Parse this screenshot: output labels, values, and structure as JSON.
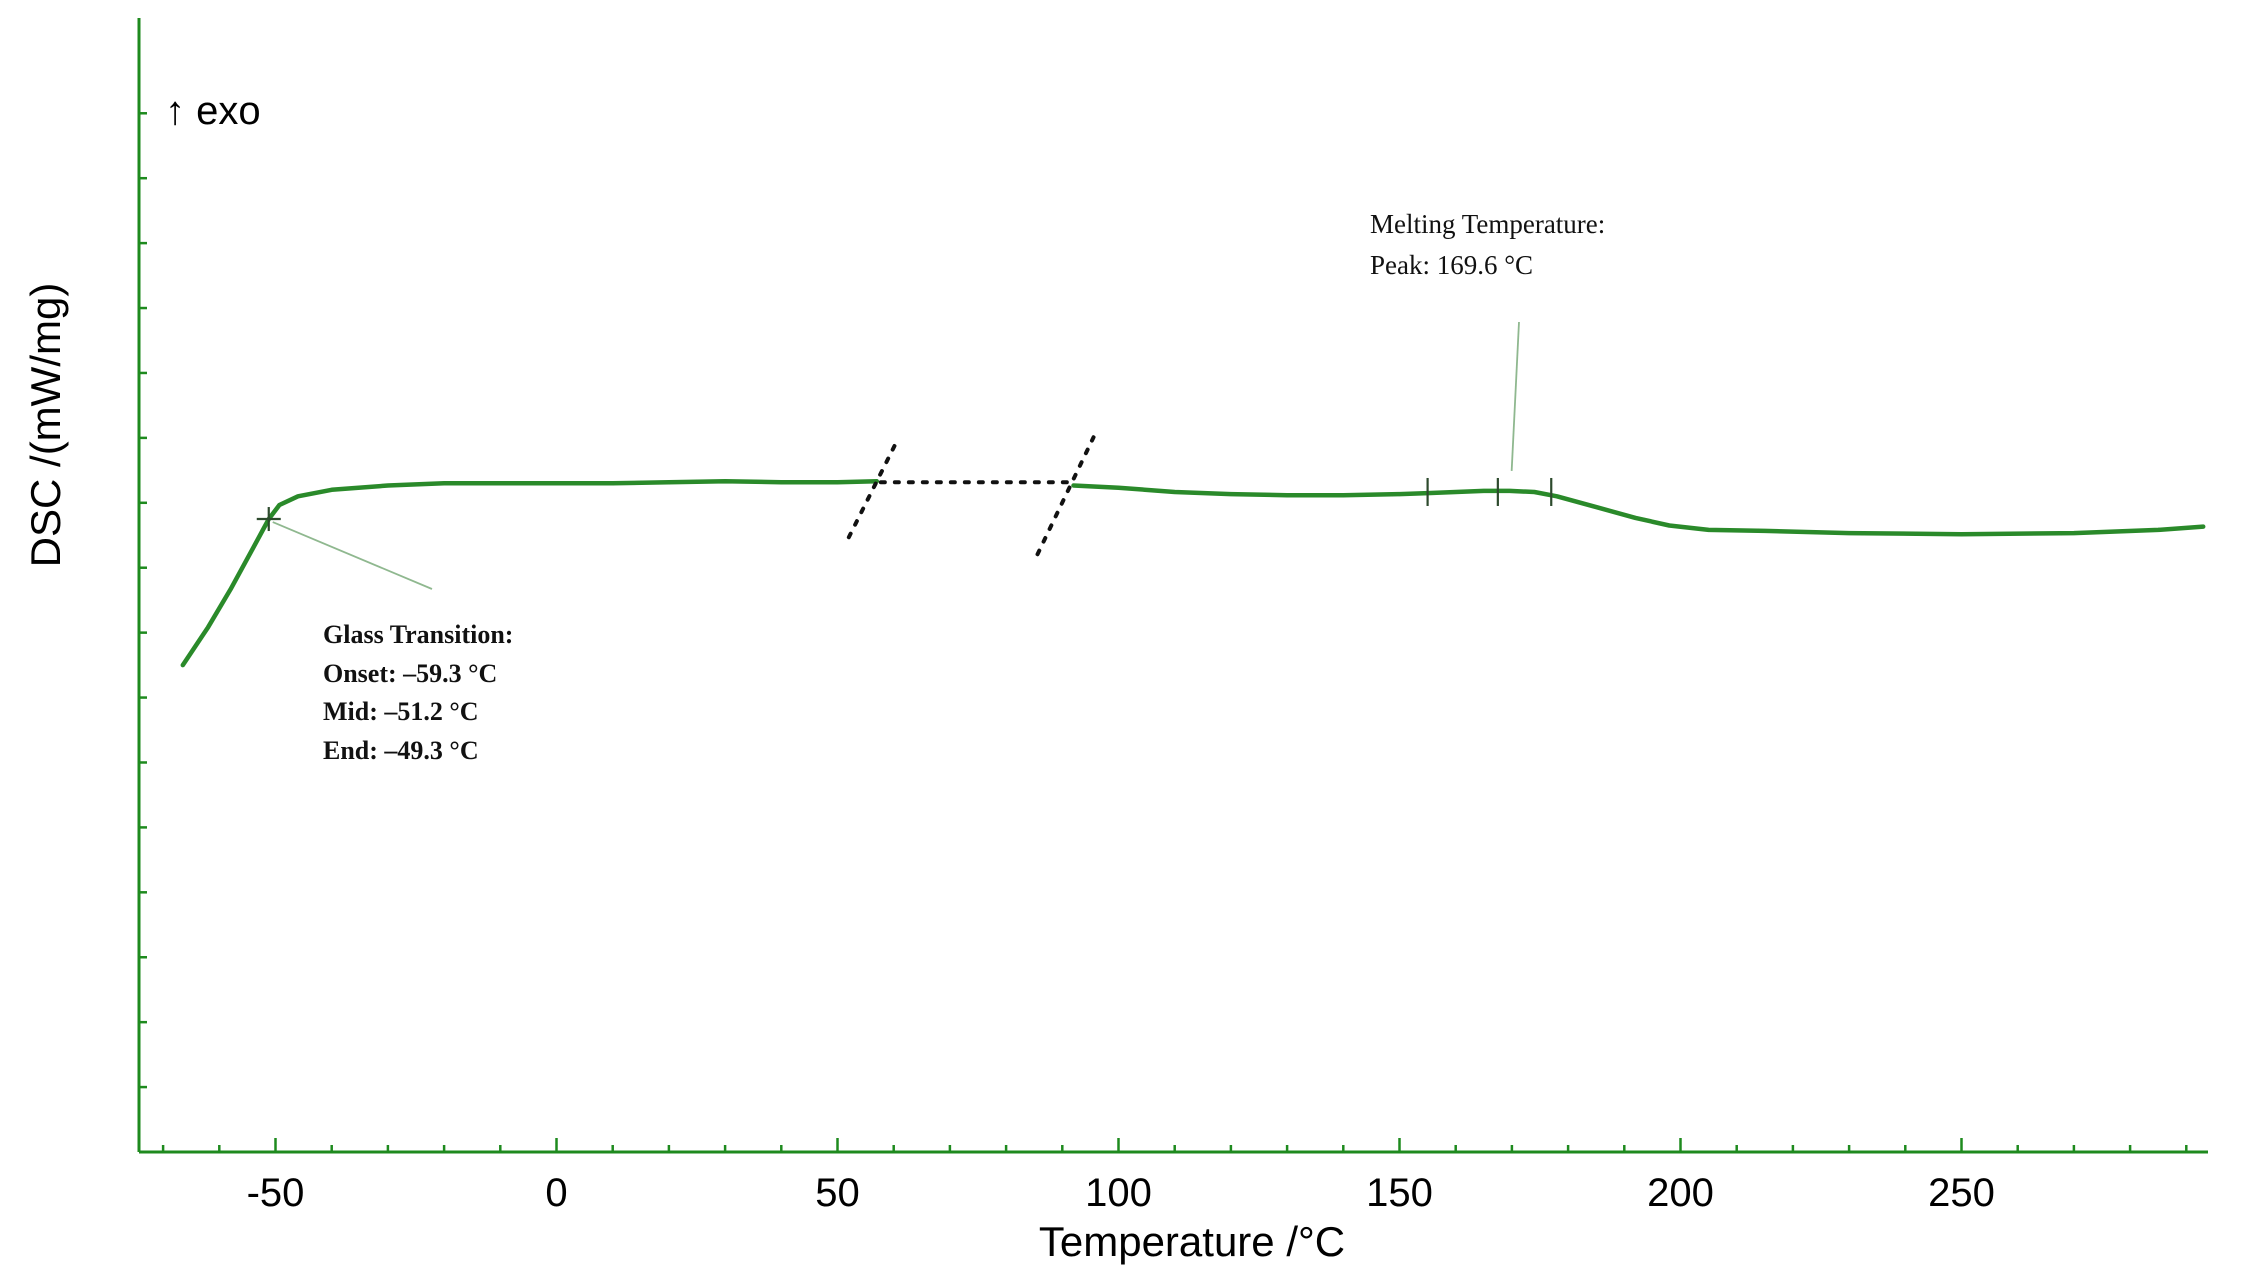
{
  "chart_data": {
    "type": "line",
    "xlabel": "Temperature /°C",
    "ylabel": "DSC /(mW/mg)",
    "exo_label": "↑ exo",
    "xlim": [
      -75,
      295
    ],
    "ylim": [
      0,
      10
    ],
    "x_tick_labels": [
      "-50",
      "0",
      "50",
      "100",
      "150",
      "200",
      "250"
    ],
    "x_ticks": [
      -50,
      0,
      50,
      100,
      150,
      200,
      250
    ],
    "x_minor_step": 10,
    "y_minor_ticks": [
      0.6,
      1.2,
      1.8,
      2.4,
      3.0,
      3.6,
      4.2,
      4.8,
      5.4,
      6.0,
      6.6,
      7.2,
      7.8,
      8.4,
      9.0,
      9.6
    ],
    "series": [
      {
        "color": "#2a8a2a",
        "segments": [
          [
            [
              -66.5,
              4.5
            ],
            [
              -62,
              4.85
            ],
            [
              -58,
              5.2
            ],
            [
              -54,
              5.58
            ],
            [
              -51.2,
              5.85
            ],
            [
              -49.3,
              5.98
            ],
            [
              -46,
              6.06
            ],
            [
              -40,
              6.12
            ],
            [
              -30,
              6.16
            ],
            [
              -20,
              6.18
            ],
            [
              -10,
              6.18
            ],
            [
              0,
              6.18
            ],
            [
              10,
              6.18
            ],
            [
              20,
              6.19
            ],
            [
              30,
              6.2
            ],
            [
              40,
              6.19
            ],
            [
              50,
              6.19
            ],
            [
              57,
              6.2
            ]
          ],
          [
            [
              92,
              6.16
            ],
            [
              100,
              6.14
            ],
            [
              110,
              6.1
            ],
            [
              120,
              6.08
            ],
            [
              130,
              6.07
            ],
            [
              140,
              6.07
            ],
            [
              150,
              6.08
            ],
            [
              155,
              6.09
            ],
            [
              160,
              6.1
            ],
            [
              165,
              6.11
            ],
            [
              169.6,
              6.11
            ],
            [
              174,
              6.1
            ],
            [
              178,
              6.06
            ],
            [
              185,
              5.96
            ],
            [
              192,
              5.86
            ],
            [
              198,
              5.79
            ],
            [
              205,
              5.75
            ],
            [
              215,
              5.74
            ],
            [
              230,
              5.72
            ],
            [
              250,
              5.71
            ],
            [
              270,
              5.72
            ],
            [
              285,
              5.75
            ],
            [
              293,
              5.78
            ]
          ]
        ]
      }
    ],
    "axis_break": {
      "from": 57,
      "to": 92
    },
    "annotations": {
      "glass_transition": {
        "title": "Glass Transition:",
        "onset": "Onset: –59.3 °C",
        "mid": "Mid: –51.2 °C",
        "end": "End: –49.3 °C",
        "x": -51.2,
        "y": 5.85
      },
      "melting": {
        "title": "Melting Temperature:",
        "peak": "Peak: 169.6 °C",
        "x": 169.6,
        "y": 6.11,
        "markers": [
          155,
          167.5,
          177
        ]
      }
    }
  }
}
